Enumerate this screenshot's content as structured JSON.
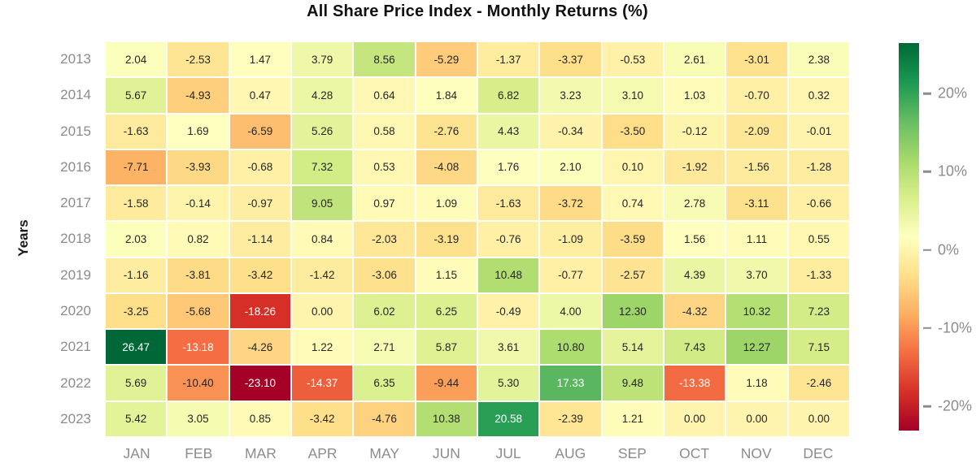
{
  "chart_data": {
    "type": "heatmap",
    "title": "All Share Price Index - Monthly Returns (%)",
    "ylabel": "Years",
    "xlabel": "",
    "rows": [
      "2013",
      "2014",
      "2015",
      "2016",
      "2017",
      "2018",
      "2019",
      "2020",
      "2021",
      "2022",
      "2023"
    ],
    "columns": [
      "JAN",
      "FEB",
      "MAR",
      "APR",
      "MAY",
      "JUN",
      "JUL",
      "AUG",
      "SEP",
      "OCT",
      "NOV",
      "DEC"
    ],
    "values": [
      [
        2.04,
        -2.53,
        1.47,
        3.79,
        8.56,
        -5.29,
        -1.37,
        -3.37,
        -0.53,
        2.61,
        -3.01,
        2.38
      ],
      [
        5.67,
        -4.93,
        0.47,
        4.28,
        0.64,
        1.84,
        6.82,
        3.23,
        3.1,
        1.03,
        -0.7,
        0.32
      ],
      [
        -1.63,
        1.69,
        -6.59,
        5.26,
        0.58,
        -2.76,
        4.43,
        -0.34,
        -3.5,
        -0.12,
        -2.09,
        -0.01
      ],
      [
        -7.71,
        -3.93,
        -0.68,
        7.32,
        0.53,
        -4.08,
        1.76,
        2.1,
        0.1,
        -1.92,
        -1.56,
        -1.28
      ],
      [
        -1.58,
        -0.14,
        -0.97,
        9.05,
        0.97,
        1.09,
        -1.63,
        -3.72,
        0.74,
        2.78,
        -3.11,
        -0.66
      ],
      [
        2.03,
        0.82,
        -1.14,
        0.84,
        -2.03,
        -3.19,
        -0.76,
        -1.09,
        -3.59,
        1.56,
        1.11,
        0.55
      ],
      [
        -1.16,
        -3.81,
        -3.42,
        -1.42,
        -3.06,
        1.15,
        10.48,
        -0.77,
        -2.57,
        4.39,
        3.7,
        -1.33
      ],
      [
        -3.25,
        -5.68,
        -18.26,
        0.0,
        6.02,
        6.25,
        -0.49,
        4.0,
        12.3,
        -4.32,
        10.32,
        7.23
      ],
      [
        26.47,
        -13.18,
        -4.26,
        1.22,
        2.71,
        5.87,
        3.61,
        10.8,
        5.14,
        7.43,
        12.27,
        7.15
      ],
      [
        5.69,
        -10.4,
        -23.1,
        -14.37,
        6.35,
        -9.44,
        5.3,
        17.33,
        9.48,
        -13.38,
        1.18,
        -2.46
      ],
      [
        5.42,
        3.05,
        0.85,
        -3.42,
        -4.76,
        10.38,
        20.58,
        -2.39,
        1.21,
        0.0,
        0.0,
        0.0
      ]
    ],
    "vmin": -23.1,
    "vmax": 26.47,
    "value_format_decimals": 2,
    "colormap": {
      "name": "RdYlGn",
      "anchors": [
        "#a50026",
        "#d73027",
        "#f46d43",
        "#fdae61",
        "#fee08b",
        "#ffffbf",
        "#d9ef8b",
        "#a6d96a",
        "#66bd63",
        "#1a9850",
        "#006837"
      ]
    },
    "colorbar": {
      "tick_values": [
        20,
        10,
        0,
        -10,
        -20
      ],
      "tick_labels": [
        "20%",
        "10%",
        "0%",
        "-10%",
        "-20%"
      ],
      "position": "right"
    },
    "style": {
      "annotation_text_dark": "#262626",
      "annotation_text_light": "#ffffff",
      "axis_tick_color": "#8c8c8c",
      "title_color": "#111111",
      "grid_line_color": "#ffffff",
      "grid_on": false,
      "legend": "colorbar-right"
    }
  }
}
